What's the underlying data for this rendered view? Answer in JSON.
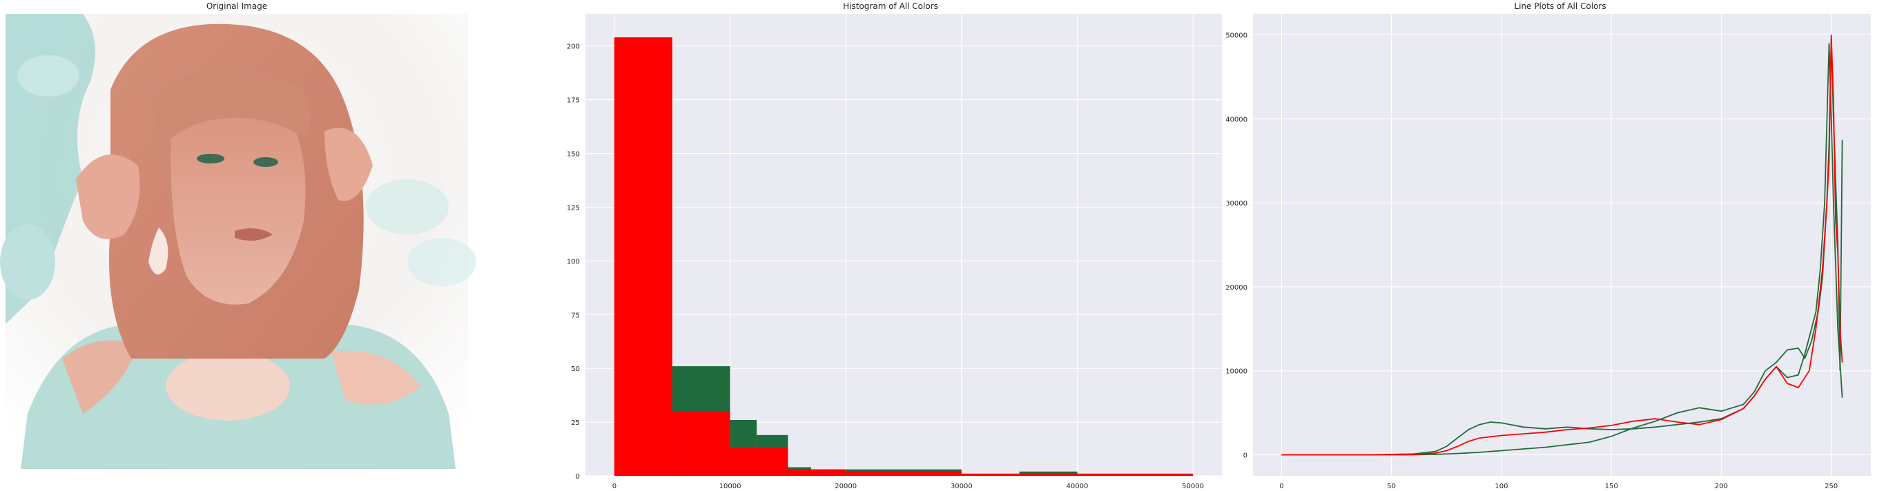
{
  "colors": {
    "plot_bg": "#eaeaf2",
    "grid": "#ffffff",
    "tick_text": "#262626",
    "green": "#1f6b3d",
    "red": "#ff0000",
    "photo_teal": "#b5dcd8",
    "photo_skin": "#e3a893"
  },
  "image_panel": {
    "title": "Original Image",
    "alt": "portrait photo with pink and teal tones"
  },
  "chart_data": [
    {
      "type": "bar",
      "title": "Histogram of All Colors",
      "xlabel": "",
      "ylabel": "",
      "xlim": [
        -2500,
        52500
      ],
      "ylim": [
        0,
        215
      ],
      "grid": true,
      "x_ticks": [
        0,
        10000,
        20000,
        30000,
        40000,
        50000
      ],
      "y_ticks": [
        0,
        25,
        50,
        75,
        100,
        125,
        150,
        175,
        200
      ],
      "bin_edges": [
        0,
        5000,
        10000,
        15000,
        20000,
        25000,
        30000,
        35000,
        40000,
        45000,
        50000
      ],
      "series": [
        {
          "color": "#1f6b3d",
          "bins": [
            {
              "x0": 0,
              "x1": 5000,
              "count": 204
            },
            {
              "x0": 5000,
              "x1": 10000,
              "count": 51
            },
            {
              "x0": 10000,
              "x1": 12300,
              "count": 26
            },
            {
              "x0": 12300,
              "x1": 15000,
              "count": 19
            },
            {
              "x0": 15000,
              "x1": 17000,
              "count": 4
            },
            {
              "x0": 17000,
              "x1": 20000,
              "count": 3
            },
            {
              "x0": 20000,
              "x1": 25000,
              "count": 3
            },
            {
              "x0": 25000,
              "x1": 30000,
              "count": 3
            },
            {
              "x0": 30000,
              "x1": 35000,
              "count": 1
            },
            {
              "x0": 35000,
              "x1": 40000,
              "count": 2
            },
            {
              "x0": 40000,
              "x1": 45000,
              "count": 1
            },
            {
              "x0": 45000,
              "x1": 50000,
              "count": 1
            }
          ]
        },
        {
          "color": "#ff0000",
          "bins": [
            {
              "x0": 0,
              "x1": 5000,
              "count": 204
            },
            {
              "x0": 5000,
              "x1": 10000,
              "count": 30
            },
            {
              "x0": 10000,
              "x1": 15000,
              "count": 13
            },
            {
              "x0": 15000,
              "x1": 20000,
              "count": 3
            },
            {
              "x0": 20000,
              "x1": 25000,
              "count": 2
            },
            {
              "x0": 25000,
              "x1": 30000,
              "count": 2
            },
            {
              "x0": 30000,
              "x1": 35000,
              "count": 1
            },
            {
              "x0": 35000,
              "x1": 40000,
              "count": 1
            },
            {
              "x0": 40000,
              "x1": 45000,
              "count": 1
            },
            {
              "x0": 45000,
              "x1": 50000,
              "count": 1
            }
          ]
        }
      ]
    },
    {
      "type": "line",
      "title": "Line Plots of All Colors",
      "xlabel": "",
      "ylabel": "",
      "xlim": [
        -13,
        268
      ],
      "ylim": [
        -2500,
        52500
      ],
      "grid": true,
      "x_ticks": [
        0,
        50,
        100,
        150,
        200,
        250
      ],
      "y_ticks": [
        0,
        10000,
        20000,
        30000,
        40000,
        50000
      ],
      "series": [
        {
          "color": "#1f6b3d",
          "x": [
            0,
            20,
            40,
            60,
            70,
            75,
            80,
            85,
            90,
            95,
            100,
            110,
            120,
            130,
            140,
            150,
            160,
            170,
            180,
            190,
            200,
            210,
            215,
            220,
            225,
            230,
            235,
            238,
            240,
            243,
            245,
            247,
            249,
            250,
            251,
            253,
            255
          ],
          "y": [
            0,
            0,
            0,
            100,
            400,
            1000,
            2000,
            3000,
            3600,
            3900,
            3800,
            3300,
            3100,
            3300,
            3100,
            3000,
            3100,
            3300,
            3600,
            3900,
            4300,
            5500,
            7000,
            9000,
            10500,
            9200,
            9500,
            12000,
            14000,
            17000,
            22000,
            30000,
            49000,
            40000,
            30000,
            15000,
            6800
          ]
        },
        {
          "color": "#1f6b3d",
          "x": [
            0,
            20,
            40,
            60,
            70,
            80,
            90,
            100,
            110,
            120,
            130,
            140,
            150,
            160,
            170,
            180,
            190,
            200,
            210,
            215,
            220,
            225,
            230,
            235,
            238,
            241,
            244,
            246,
            248,
            249,
            250,
            251,
            253,
            254,
            255
          ],
          "y": [
            0,
            0,
            0,
            0,
            50,
            150,
            300,
            500,
            700,
            900,
            1200,
            1500,
            2200,
            3200,
            4000,
            5000,
            5600,
            5200,
            6000,
            7500,
            10000,
            11000,
            12500,
            12700,
            11500,
            13500,
            17000,
            21000,
            30000,
            37000,
            49500,
            40000,
            25000,
            10000,
            37500
          ]
        },
        {
          "color": "#ff0000",
          "x": [
            0,
            20,
            40,
            60,
            70,
            75,
            80,
            85,
            90,
            100,
            110,
            120,
            130,
            140,
            150,
            160,
            170,
            180,
            190,
            200,
            210,
            215,
            220,
            225,
            230,
            235,
            240,
            243,
            246,
            248,
            249,
            250,
            251,
            252,
            253,
            254,
            255
          ],
          "y": [
            0,
            0,
            0,
            50,
            200,
            500,
            1000,
            1600,
            2000,
            2300,
            2500,
            2700,
            3000,
            3200,
            3500,
            4000,
            4300,
            3900,
            3600,
            4200,
            5500,
            7000,
            9000,
            10500,
            8500,
            8000,
            10000,
            15000,
            22000,
            30000,
            35000,
            50000,
            42000,
            28000,
            24000,
            15000,
            11000
          ]
        }
      ]
    }
  ]
}
